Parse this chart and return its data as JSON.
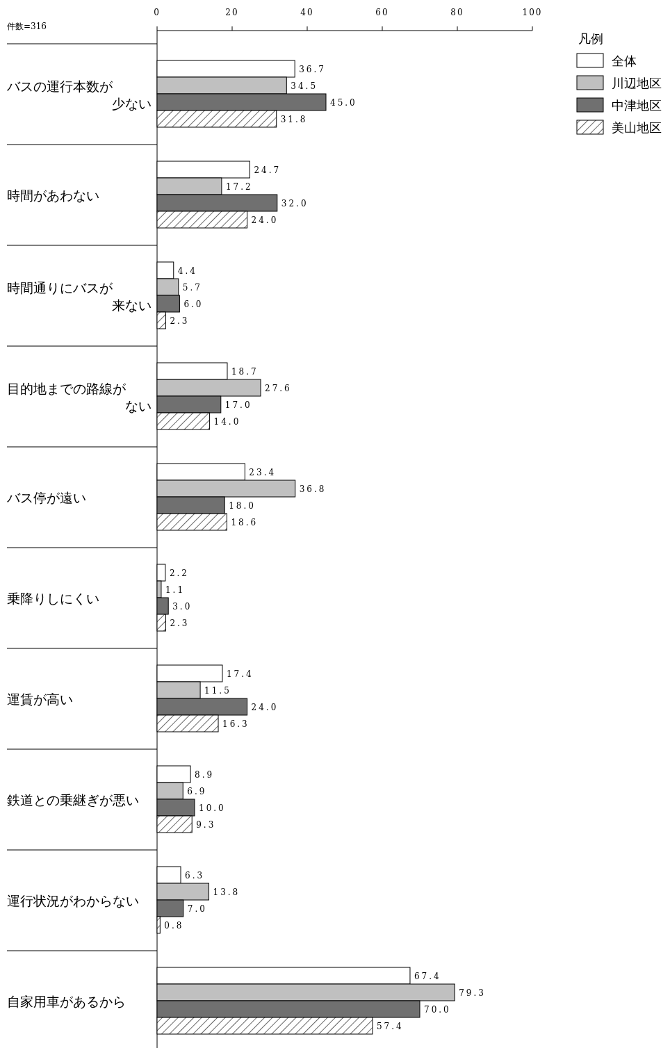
{
  "chart_data": {
    "type": "bar",
    "orientation": "horizontal",
    "categories": [
      "バスの運行本数が少ない",
      "時間があわない",
      "時間通りにバスが来ない",
      "目的地までの路線がない",
      "バス停が遠い",
      "乗降りしにくい",
      "運賃が高い",
      "鉄道との乗継ぎが悪い",
      "運行状況がわからない",
      "自家用車があるから"
    ],
    "series": [
      {
        "name": "全体",
        "color": "#ffffff",
        "values": [
          36.7,
          24.7,
          4.4,
          18.7,
          23.4,
          2.2,
          17.4,
          8.9,
          6.3,
          67.4
        ],
        "value_labels": [
          "36.7",
          "24.7",
          "4.4",
          "18.7",
          "23.4",
          "2.2",
          "17.4",
          "8.9",
          "6.3",
          "67.4"
        ]
      },
      {
        "name": "川辺地区",
        "color": "#c0c0c0",
        "values": [
          34.5,
          17.2,
          5.7,
          27.6,
          36.8,
          1.1,
          11.5,
          6.9,
          13.8,
          79.3
        ],
        "value_labels": [
          "34.5",
          "17.2",
          "5.7",
          "27.6",
          "36.8",
          "1.1",
          "11.5",
          "6.9",
          "13.8",
          "79.3"
        ]
      },
      {
        "name": "中津地区",
        "color": "#707070",
        "values": [
          45.0,
          32.0,
          6.0,
          17.0,
          18.0,
          3.0,
          24.0,
          10.0,
          7.0,
          70.0
        ],
        "value_labels": [
          "45.0",
          "32.0",
          "6.0",
          "17.0",
          "18.0",
          "3.0",
          "24.0",
          "10.0",
          "7.0",
          "70.0"
        ]
      },
      {
        "name": "美山地区",
        "color": "#000000",
        "values": [
          31.8,
          24.0,
          2.3,
          14.0,
          18.6,
          2.3,
          16.3,
          9.3,
          0.8,
          57.4
        ],
        "value_labels": [
          "31.8",
          "24.0",
          "2.3",
          "14.0",
          "18.6",
          "2.3",
          "16.3",
          "9.3",
          "0.8",
          "57.4"
        ]
      }
    ],
    "xlim": [
      0,
      100
    ],
    "xticks": [
      0,
      20,
      40,
      60,
      80,
      100
    ],
    "legend": "top right",
    "legend_title": "凡例",
    "annotations": [
      "件数=316"
    ]
  }
}
